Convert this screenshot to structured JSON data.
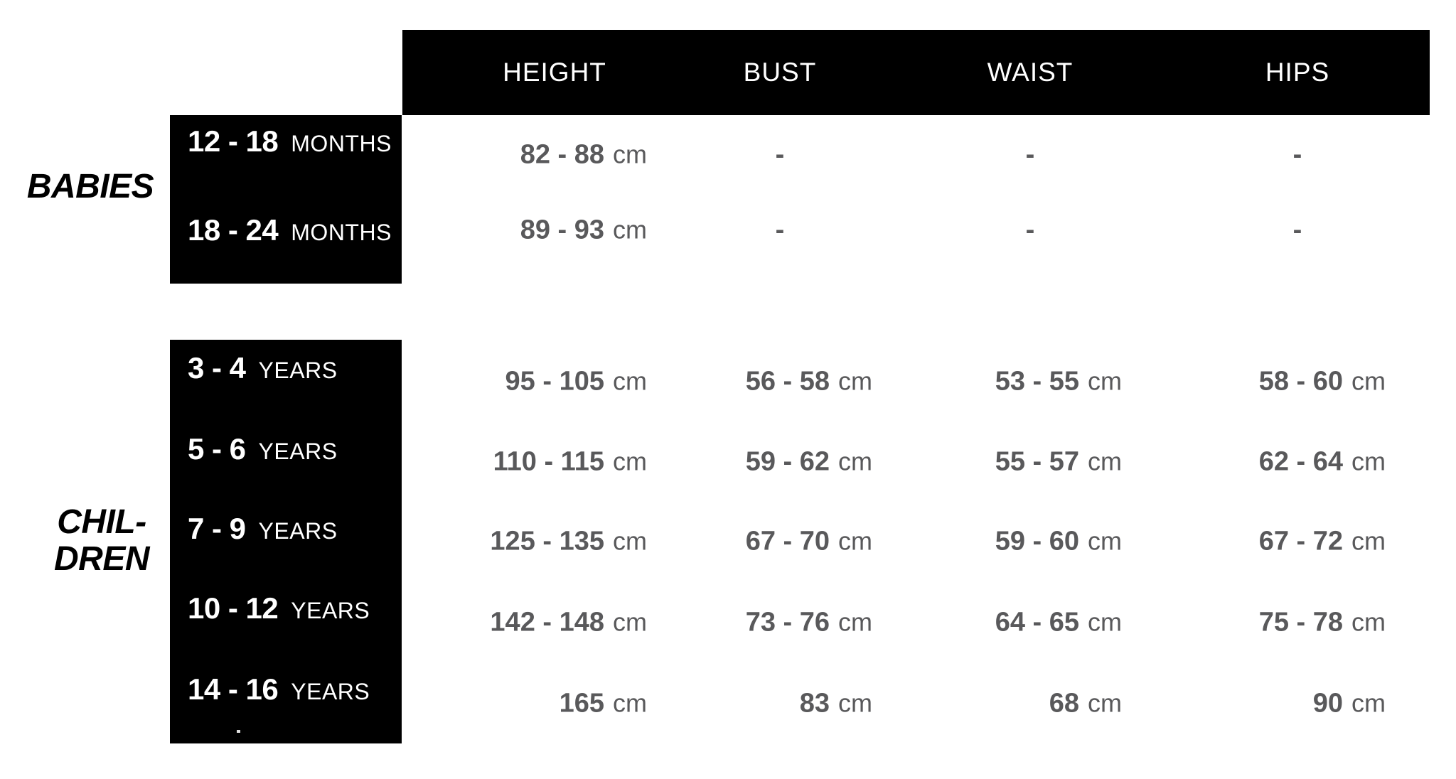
{
  "chart_data": {
    "type": "table",
    "unit": "cm",
    "empty_marker": "-",
    "column_headers": [
      "HEIGHT",
      "BUST",
      "WAIST",
      "HIPS"
    ],
    "sections": [
      {
        "label_lines": [
          "BABIES"
        ],
        "rows": [
          {
            "age": "12 - 18",
            "age_unit": "MONTHS",
            "values": [
              "82 - 88",
              null,
              null,
              null
            ]
          },
          {
            "age": "18 - 24",
            "age_unit": "MONTHS",
            "values": [
              "89 - 93",
              null,
              null,
              null
            ]
          }
        ]
      },
      {
        "label_lines": [
          "CHIL-",
          "DREN"
        ],
        "rows": [
          {
            "age": "3 - 4",
            "age_unit": "YEARS",
            "values": [
              "95 - 105",
              "56 - 58",
              "53 - 55",
              "58 - 60"
            ]
          },
          {
            "age": "5 - 6",
            "age_unit": "YEARS",
            "values": [
              "110 - 115",
              "59 - 62",
              "55 - 57",
              "62 - 64"
            ]
          },
          {
            "age": "7 - 9",
            "age_unit": "YEARS",
            "values": [
              "125 - 135",
              "67 - 70",
              "59 - 60",
              "67 - 72"
            ]
          },
          {
            "age": "10 - 12",
            "age_unit": "YEARS",
            "values": [
              "142 - 148",
              "73 - 76",
              "64 - 65",
              "75 - 78"
            ]
          },
          {
            "age": "14 - 16",
            "age_unit": "YEARS",
            "values": [
              "165",
              "83",
              "68",
              "90"
            ]
          }
        ]
      }
    ]
  },
  "colors": {
    "page_bg": "#ffffff",
    "header_bg": "#000000",
    "header_text": "#ffffff",
    "group_box_bg": "#000000",
    "group_label_text": "#000000",
    "value_text": "#59595b"
  }
}
